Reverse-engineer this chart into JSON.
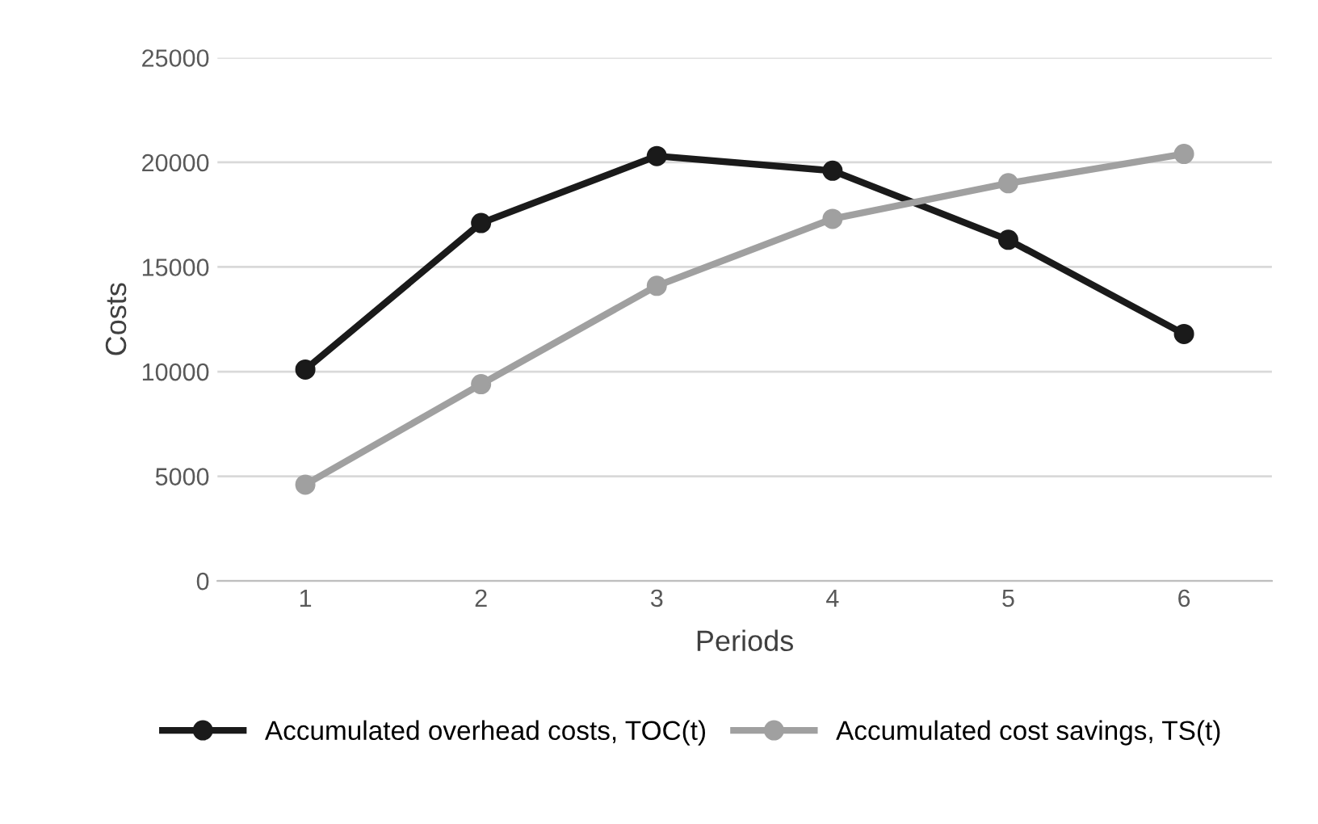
{
  "chart_data": {
    "type": "line",
    "xlabel": "Periods",
    "ylabel": "Costs",
    "categories": [
      "1",
      "2",
      "3",
      "4",
      "5",
      "6"
    ],
    "series": [
      {
        "name": "Accumulated overhead costs, TOC(t)",
        "color": "#1a1a1a",
        "values": [
          10100,
          17100,
          20300,
          19600,
          16300,
          11800
        ]
      },
      {
        "name": "Accumulated cost savings, TS(t)",
        "color": "#a0a0a0",
        "values": [
          4600,
          9400,
          14100,
          17300,
          19000,
          20400
        ]
      }
    ],
    "ylim": [
      0,
      25000
    ],
    "yticks": [
      0,
      5000,
      10000,
      15000,
      20000,
      25000
    ],
    "grid": "y",
    "legend": "bottom",
    "marker": "circle",
    "line_style": "solid"
  }
}
